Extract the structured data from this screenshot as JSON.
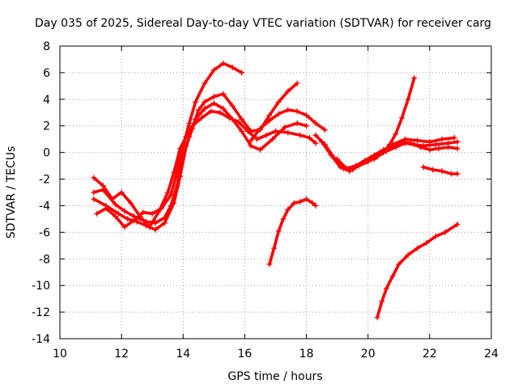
{
  "chart_data": {
    "type": "line",
    "title": "Day 035 of 2025, Sidereal Day-to-day VTEC variation (SDTVAR) for receiver carg",
    "xlabel": "GPS time / hours",
    "ylabel": "SDTVAR / TECUs",
    "xlim": [
      10,
      24
    ],
    "ylim": [
      -14,
      8
    ],
    "xticks": [
      10,
      12,
      14,
      16,
      18,
      20,
      22,
      24
    ],
    "yticks": [
      -14,
      -12,
      -10,
      -8,
      -6,
      -4,
      -2,
      0,
      2,
      4,
      6,
      8
    ],
    "grid": true,
    "legend": "none",
    "color": "#ff0000",
    "marker": "plus",
    "series": [
      {
        "x": [
          11.1,
          11.4,
          11.7,
          12.0,
          12.3,
          12.6,
          12.9,
          13.2,
          13.5,
          13.7,
          13.9,
          14.1,
          14.3,
          14.6,
          14.9,
          15.2,
          15.5,
          15.8,
          16.1,
          16.4,
          16.7,
          17.0,
          17.4,
          17.8,
          18.1,
          18.3
        ],
        "y": [
          -1.9,
          -2.5,
          -3.5,
          -3.0,
          -3.8,
          -4.8,
          -5.6,
          -4.5,
          -3.0,
          -1.5,
          0.3,
          1.2,
          2.0,
          2.6,
          3.1,
          3.0,
          2.6,
          2.3,
          1.6,
          1.0,
          1.3,
          1.6,
          1.5,
          1.3,
          1.1,
          0.7
        ]
      },
      {
        "x": [
          11.1,
          11.4,
          11.8,
          12.1,
          12.4,
          12.8,
          13.1,
          13.4,
          13.6,
          13.8,
          14.0,
          14.2,
          14.4,
          14.7,
          15.0,
          15.3,
          15.6,
          15.9,
          16.2,
          16.5,
          16.9,
          17.3,
          17.7,
          18.0
        ],
        "y": [
          -3.0,
          -2.8,
          -3.9,
          -4.4,
          -4.8,
          -5.2,
          -5.3,
          -4.9,
          -4.0,
          -2.5,
          -0.3,
          1.2,
          2.5,
          3.3,
          3.7,
          3.3,
          2.5,
          1.6,
          0.5,
          0.2,
          1.0,
          1.9,
          2.2,
          2.0
        ]
      },
      {
        "x": [
          11.1,
          11.5,
          11.9,
          12.2,
          12.5,
          12.8,
          13.1,
          13.4,
          13.7,
          13.9,
          14.1,
          14.3,
          14.5,
          14.7,
          15.0,
          15.3,
          15.6,
          15.9,
          16.2,
          16.5,
          16.8,
          17.1,
          17.4,
          17.7
        ],
        "y": [
          -3.5,
          -4.0,
          -4.6,
          -5.0,
          -5.2,
          -5.5,
          -5.8,
          -5.3,
          -3.8,
          -1.8,
          0.5,
          1.8,
          3.2,
          3.8,
          4.2,
          4.4,
          3.5,
          2.5,
          1.6,
          1.7,
          2.8,
          3.8,
          4.6,
          5.2
        ]
      },
      {
        "x": [
          11.2,
          11.5,
          11.8,
          12.1,
          12.4,
          12.7,
          13.0,
          13.3,
          13.6,
          13.8,
          14.0,
          14.2,
          14.4,
          14.7,
          15.0,
          15.3,
          15.6,
          15.9
        ],
        "y": [
          -4.6,
          -4.2,
          -4.8,
          -5.6,
          -5.1,
          -4.5,
          -4.6,
          -4.2,
          -3.2,
          -1.5,
          0.5,
          2.2,
          3.8,
          5.2,
          6.2,
          6.7,
          6.4,
          6.0
        ]
      },
      {
        "x": [
          16.2,
          16.5,
          16.8,
          17.1,
          17.4,
          17.7,
          18.0,
          18.3,
          18.6
        ],
        "y": [
          0.9,
          1.8,
          2.4,
          2.9,
          3.2,
          3.1,
          2.8,
          2.2,
          1.7
        ]
      },
      {
        "x": [
          18.3,
          18.6,
          18.9,
          19.2,
          19.5,
          19.8,
          20.1,
          20.4,
          20.8,
          21.2,
          21.6,
          22.0,
          22.4,
          22.8
        ],
        "y": [
          1.3,
          0.6,
          -0.4,
          -1.2,
          -1.3,
          -0.8,
          -0.4,
          0.0,
          0.6,
          1.0,
          0.9,
          0.8,
          1.0,
          1.1
        ]
      },
      {
        "x": [
          18.5,
          18.8,
          19.1,
          19.4,
          19.7,
          20.0,
          20.3,
          20.6,
          20.9,
          21.2,
          21.5,
          21.8,
          22.2,
          22.6,
          22.9
        ],
        "y": [
          0.8,
          -0.2,
          -1.1,
          -1.4,
          -1.0,
          -0.7,
          -0.3,
          0.1,
          0.4,
          0.7,
          0.6,
          0.5,
          0.6,
          0.7,
          0.8
        ]
      },
      {
        "x": [
          19.0,
          19.3,
          19.6,
          19.9,
          20.2,
          20.5,
          20.8,
          21.1,
          21.4,
          21.7,
          22.0,
          22.3,
          22.6,
          22.9
        ],
        "y": [
          -0.5,
          -1.2,
          -1.0,
          -0.6,
          -0.2,
          0.2,
          0.5,
          0.8,
          0.7,
          0.4,
          0.2,
          0.3,
          0.4,
          0.3
        ]
      },
      {
        "x": [
          20.2,
          20.5,
          20.7,
          20.9,
          21.1,
          21.3,
          21.5
        ],
        "y": [
          -0.5,
          0.0,
          0.6,
          1.4,
          2.6,
          4.0,
          5.6
        ]
      },
      {
        "x": [
          21.8,
          22.1,
          22.4,
          22.7,
          22.9
        ],
        "y": [
          -1.1,
          -1.3,
          -1.4,
          -1.6,
          -1.6
        ]
      },
      {
        "x": [
          16.8,
          16.95,
          17.1,
          17.25,
          17.4,
          17.6,
          17.8,
          18.0,
          18.2,
          18.3
        ],
        "y": [
          -8.4,
          -7.2,
          -5.9,
          -5.0,
          -4.3,
          -3.8,
          -3.7,
          -3.5,
          -3.8,
          -4.0
        ]
      },
      {
        "x": [
          20.3,
          20.45,
          20.6,
          20.8,
          21.0,
          21.3,
          21.6,
          21.9,
          22.2,
          22.5,
          22.9
        ],
        "y": [
          -12.4,
          -11.2,
          -10.2,
          -9.3,
          -8.4,
          -7.7,
          -7.2,
          -6.8,
          -6.3,
          -6.0,
          -5.4
        ]
      }
    ]
  }
}
